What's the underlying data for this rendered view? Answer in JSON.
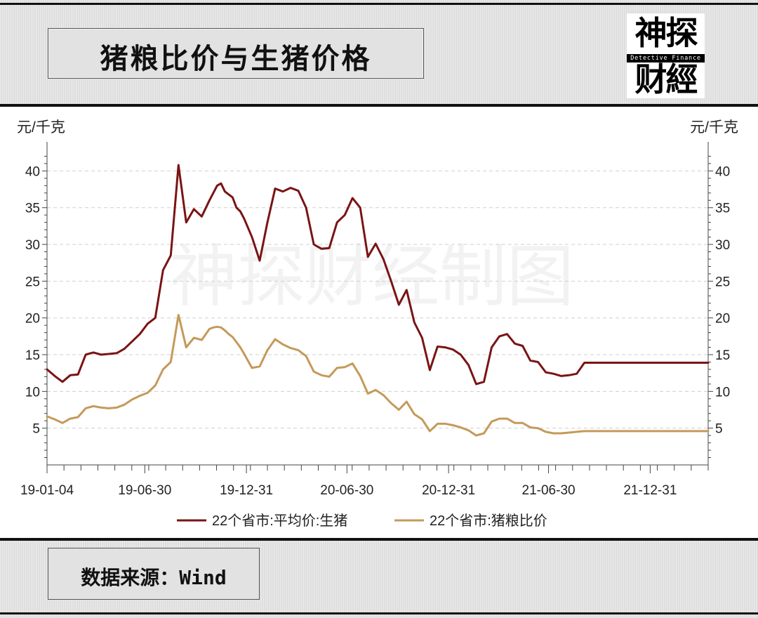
{
  "header": {
    "title": "猪粮比价与生猪价格"
  },
  "logo": {
    "line1": "神探",
    "band": "Detective Finance",
    "line2": "财經"
  },
  "watermark": "神探财经制图",
  "source": {
    "text": "数据来源：Wind"
  },
  "chart_data": {
    "type": "line",
    "title": "猪粮比价与生猪价格",
    "ylabel_left": "元/千克",
    "ylabel_right": "元/千克",
    "ylim": [
      0,
      43
    ],
    "yticks": [
      5,
      10,
      15,
      20,
      25,
      30,
      35,
      40
    ],
    "xlim": [
      "2019-01-04",
      "2022-04-15"
    ],
    "xticks": [
      "19-01-04",
      "19-06-30",
      "19-12-31",
      "20-06-30",
      "20-12-31",
      "21-06-30",
      "21-12-31"
    ],
    "grid": true,
    "legend_position": "bottom",
    "colors": {
      "price": "#7a1414",
      "ratio": "#c49a5a",
      "axis": "#444444",
      "grid": "#cfcfcf"
    },
    "x": [
      "2019-01-04",
      "2019-01-18",
      "2019-02-01",
      "2019-02-15",
      "2019-03-01",
      "2019-03-15",
      "2019-03-29",
      "2019-04-12",
      "2019-04-26",
      "2019-05-10",
      "2019-05-24",
      "2019-06-07",
      "2019-06-21",
      "2019-07-05",
      "2019-07-19",
      "2019-08-02",
      "2019-08-16",
      "2019-08-30",
      "2019-09-13",
      "2019-09-27",
      "2019-10-11",
      "2019-10-25",
      "2019-11-01",
      "2019-11-08",
      "2019-11-15",
      "2019-11-22",
      "2019-11-29",
      "2019-12-06",
      "2019-12-13",
      "2019-12-20",
      "2019-12-27",
      "2020-01-10",
      "2020-01-24",
      "2020-02-07",
      "2020-02-21",
      "2020-03-06",
      "2020-03-20",
      "2020-04-03",
      "2020-04-17",
      "2020-05-01",
      "2020-05-15",
      "2020-05-29",
      "2020-06-12",
      "2020-06-26",
      "2020-07-10",
      "2020-07-24",
      "2020-08-07",
      "2020-08-21",
      "2020-09-04",
      "2020-09-18",
      "2020-10-02",
      "2020-10-16",
      "2020-10-30",
      "2020-11-13",
      "2020-11-27",
      "2020-12-11",
      "2020-12-25",
      "2021-01-08",
      "2021-01-22",
      "2021-02-05",
      "2021-02-19",
      "2021-03-05",
      "2021-03-19",
      "2021-04-02",
      "2021-04-16",
      "2021-04-30",
      "2021-05-14",
      "2021-05-28",
      "2021-06-11",
      "2021-06-25",
      "2021-07-09",
      "2021-07-23",
      "2021-08-06",
      "2021-08-20",
      "2021-09-03",
      "2021-09-17",
      "2021-10-01",
      "2021-10-15",
      "2021-10-29",
      "2021-11-12",
      "2021-11-26",
      "2021-12-10",
      "2021-12-24",
      "2022-01-07",
      "2022-01-21",
      "2022-02-04",
      "2022-02-18",
      "2022-03-04",
      "2022-03-18",
      "2022-04-01",
      "2022-04-15"
    ],
    "series": [
      {
        "name": "22个省市:平均价:生猪",
        "values": [
          13.0,
          12.1,
          11.3,
          12.2,
          12.3,
          15.0,
          15.3,
          15.0,
          15.1,
          15.2,
          15.8,
          16.8,
          17.8,
          19.2,
          20.0,
          26.5,
          28.5,
          40.8,
          33.0,
          34.8,
          33.8,
          36.0,
          37.0,
          38.0,
          38.3,
          37.2,
          36.8,
          36.4,
          35.0,
          34.5,
          33.5,
          31.0,
          27.8,
          33.0,
          37.6,
          37.2,
          37.7,
          37.3,
          35.0,
          30.0,
          29.4,
          29.5,
          33.0,
          34.0,
          36.3,
          35.0,
          28.3,
          30.1,
          28.0,
          25.0,
          21.8,
          23.8,
          19.4,
          17.3,
          12.9,
          16.1,
          16.0,
          15.7,
          15.0,
          13.6,
          11.0,
          11.3,
          16.0,
          17.5,
          17.8,
          16.5,
          16.2,
          14.2,
          14.0,
          12.6,
          12.4,
          12.1,
          12.2,
          12.4,
          13.9,
          13.9,
          13.9,
          13.9,
          13.9,
          13.9,
          13.9,
          13.9,
          13.9,
          13.9,
          13.9,
          13.9,
          13.9,
          13.9,
          13.9,
          13.9,
          13.9
        ]
      },
      {
        "name": "22个省市:猪粮比价",
        "values": [
          6.6,
          6.2,
          5.7,
          6.3,
          6.5,
          7.7,
          8.0,
          7.8,
          7.7,
          7.8,
          8.2,
          8.9,
          9.4,
          9.8,
          10.8,
          13.0,
          14.0,
          20.4,
          16.0,
          17.3,
          17.0,
          18.5,
          18.7,
          18.8,
          18.7,
          18.3,
          17.8,
          17.4,
          16.7,
          16.0,
          15.1,
          13.2,
          13.4,
          15.6,
          17.1,
          16.4,
          15.9,
          15.6,
          14.8,
          12.7,
          12.2,
          12.0,
          13.2,
          13.3,
          13.8,
          12.1,
          9.7,
          10.2,
          9.5,
          8.4,
          7.5,
          8.6,
          6.9,
          6.2,
          4.6,
          5.6,
          5.6,
          5.4,
          5.1,
          4.7,
          4.0,
          4.3,
          5.9,
          6.3,
          6.3,
          5.7,
          5.7,
          5.1,
          5.0,
          4.5,
          4.3,
          4.3,
          4.4,
          4.5,
          4.6,
          4.6,
          4.6,
          4.6,
          4.6,
          4.6,
          4.6,
          4.6,
          4.6,
          4.6,
          4.6,
          4.6,
          4.6,
          4.6,
          4.6,
          4.6,
          4.6
        ]
      }
    ]
  }
}
